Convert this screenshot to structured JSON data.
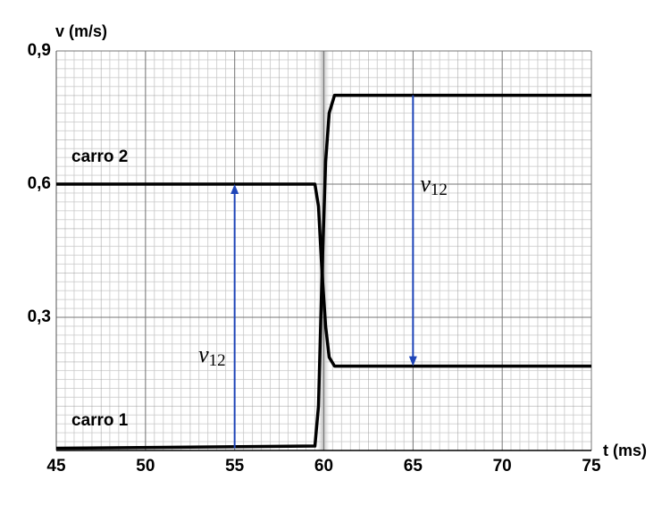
{
  "chart_data": {
    "type": "line",
    "y_label": "v (m/s)",
    "x_label": "t (ms)",
    "xlim": [
      45,
      75
    ],
    "xticks": [
      45,
      50,
      55,
      60,
      65,
      70,
      75
    ],
    "ylim": [
      0,
      0.9
    ],
    "yticks": [
      {
        "value": 0.3,
        "label": "0,3"
      },
      {
        "value": 0.6,
        "label": "0,6"
      },
      {
        "value": 0.9,
        "label": "0,9"
      }
    ],
    "grid": true,
    "x": [
      45,
      59.5,
      59.7,
      59.9,
      60.1,
      60.3,
      60.6,
      75
    ],
    "series": [
      {
        "name": "carro 1",
        "color": "#000000",
        "values": [
          0.005,
          0.01,
          0.1,
          0.4,
          0.65,
          0.76,
          0.8,
          0.8
        ]
      },
      {
        "name": "carro 2",
        "color": "#000000",
        "values": [
          0.6,
          0.6,
          0.55,
          0.4,
          0.28,
          0.21,
          0.19,
          0.19
        ]
      }
    ],
    "arrows": [
      {
        "x": 55,
        "from": 0.005,
        "to": 0.6,
        "label": "v",
        "subscript": "12",
        "color": "#1f45b8"
      },
      {
        "x": 65,
        "from": 0.8,
        "to": 0.19,
        "label": "v",
        "subscript": "12",
        "color": "#1f45b8"
      }
    ]
  }
}
